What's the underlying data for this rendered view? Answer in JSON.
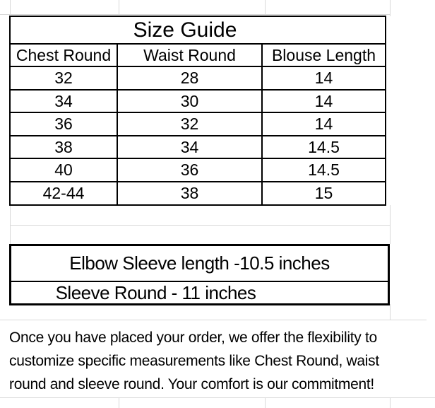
{
  "size_table": {
    "title": "Size Guide",
    "columns": [
      "Chest Round",
      "Waist Round",
      "Blouse Length"
    ],
    "rows": [
      [
        "32",
        "28",
        "14"
      ],
      [
        "34",
        "30",
        "14"
      ],
      [
        "36",
        "32",
        "14"
      ],
      [
        "38",
        "34",
        "14.5"
      ],
      [
        "40",
        "36",
        "14.5"
      ],
      [
        "42-44",
        "38",
        "15"
      ]
    ]
  },
  "sleeve_info": {
    "elbow_sleeve_length": "Elbow Sleeve length -10.5 inches",
    "sleeve_round": "Sleeve Round - 11 inches"
  },
  "customization_note": {
    "lines": [
      "Once you have placed your order, we offer the flexibility to",
      "customize specific measurements like Chest Round, waist",
      "round and sleeve round. Your comfort is our commitment!"
    ]
  },
  "colors": {
    "table_border": "#000000",
    "gridline": "#d9d9d9",
    "background": "#ffffff",
    "text": "#000000"
  }
}
